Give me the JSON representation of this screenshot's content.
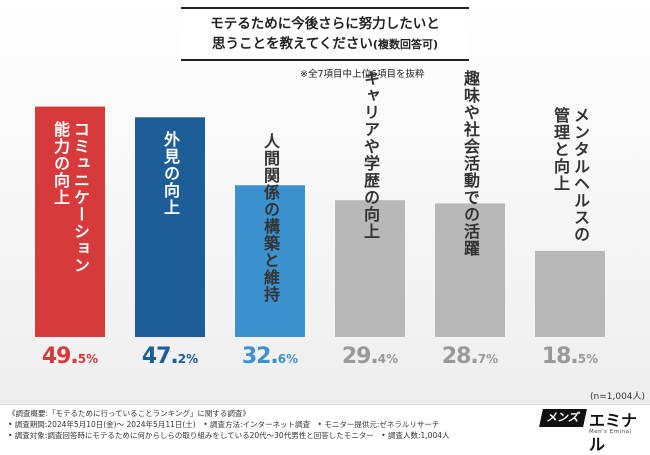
{
  "title": {
    "line1": "モテるために今後さらに努力したいと",
    "line2": "思うことを教えてください",
    "line2_suffix": "(複数回答可)"
  },
  "note": "※全7項目中上位6項目を抜粋",
  "chart_data": {
    "type": "bar",
    "title": "モテるために今後さらに努力したいと思うことを教えてください(複数回答可)",
    "xlabel": "",
    "ylabel": "",
    "ylim": [
      0,
      55
    ],
    "unit": "%",
    "categories": [
      "コミュニケーション能力の向上",
      "外見の向上",
      "人間関係の構築と維持",
      "キャリアや学歴の向上",
      "趣味や社会活動での活躍",
      "メンタルヘルスの管理と向上"
    ],
    "values": [
      49.5,
      47.2,
      32.6,
      29.4,
      28.7,
      18.5
    ],
    "label_lines": [
      [
        "コミュニケーション",
        "能力の向上"
      ],
      [
        "外見の向上"
      ],
      [
        "人間関係の構築と維持"
      ],
      [
        "キャリアや学歴の向上"
      ],
      [
        "趣味や社会活動での活躍"
      ],
      [
        "メンタルヘルスの",
        "管理と向上"
      ]
    ],
    "value_int": [
      "49.",
      "47.",
      "32.",
      "29.",
      "28.",
      "18."
    ],
    "value_dec": [
      "5%",
      "2%",
      "6%",
      "4%",
      "7%",
      "5%"
    ],
    "colors": [
      "#d63a3a",
      "#1d5d98",
      "#3c91cf",
      "#b8b8b8",
      "#b8b8b8",
      "#b8b8b8"
    ],
    "value_colors": [
      "#d63a3a",
      "#1d5d98",
      "#3c91cf",
      "#999999",
      "#999999",
      "#999999"
    ],
    "label_colors": [
      "light",
      "light",
      "dark",
      "dark",
      "dark",
      "dark"
    ]
  },
  "sample_size": "(n=1,004人)",
  "survey": {
    "line1": "《調査概要:「モテるために行っていることランキング」に関する調査》",
    "line2": "• 調査期間:2024年5月10日(金)〜 2024年5月11日(土)　• 調査方法:インターネット調査　• モニター提供元:ゼネラルリサーチ",
    "line3": "• 調査対象:調査回答時にモテるために何からしらの取り組みをしている20代〜30代男性と回答したモニター　• 調査人数:1,004人"
  },
  "brand": {
    "mark": "メンズ",
    "name": "エミナル",
    "sub": "Men's Eminal"
  }
}
